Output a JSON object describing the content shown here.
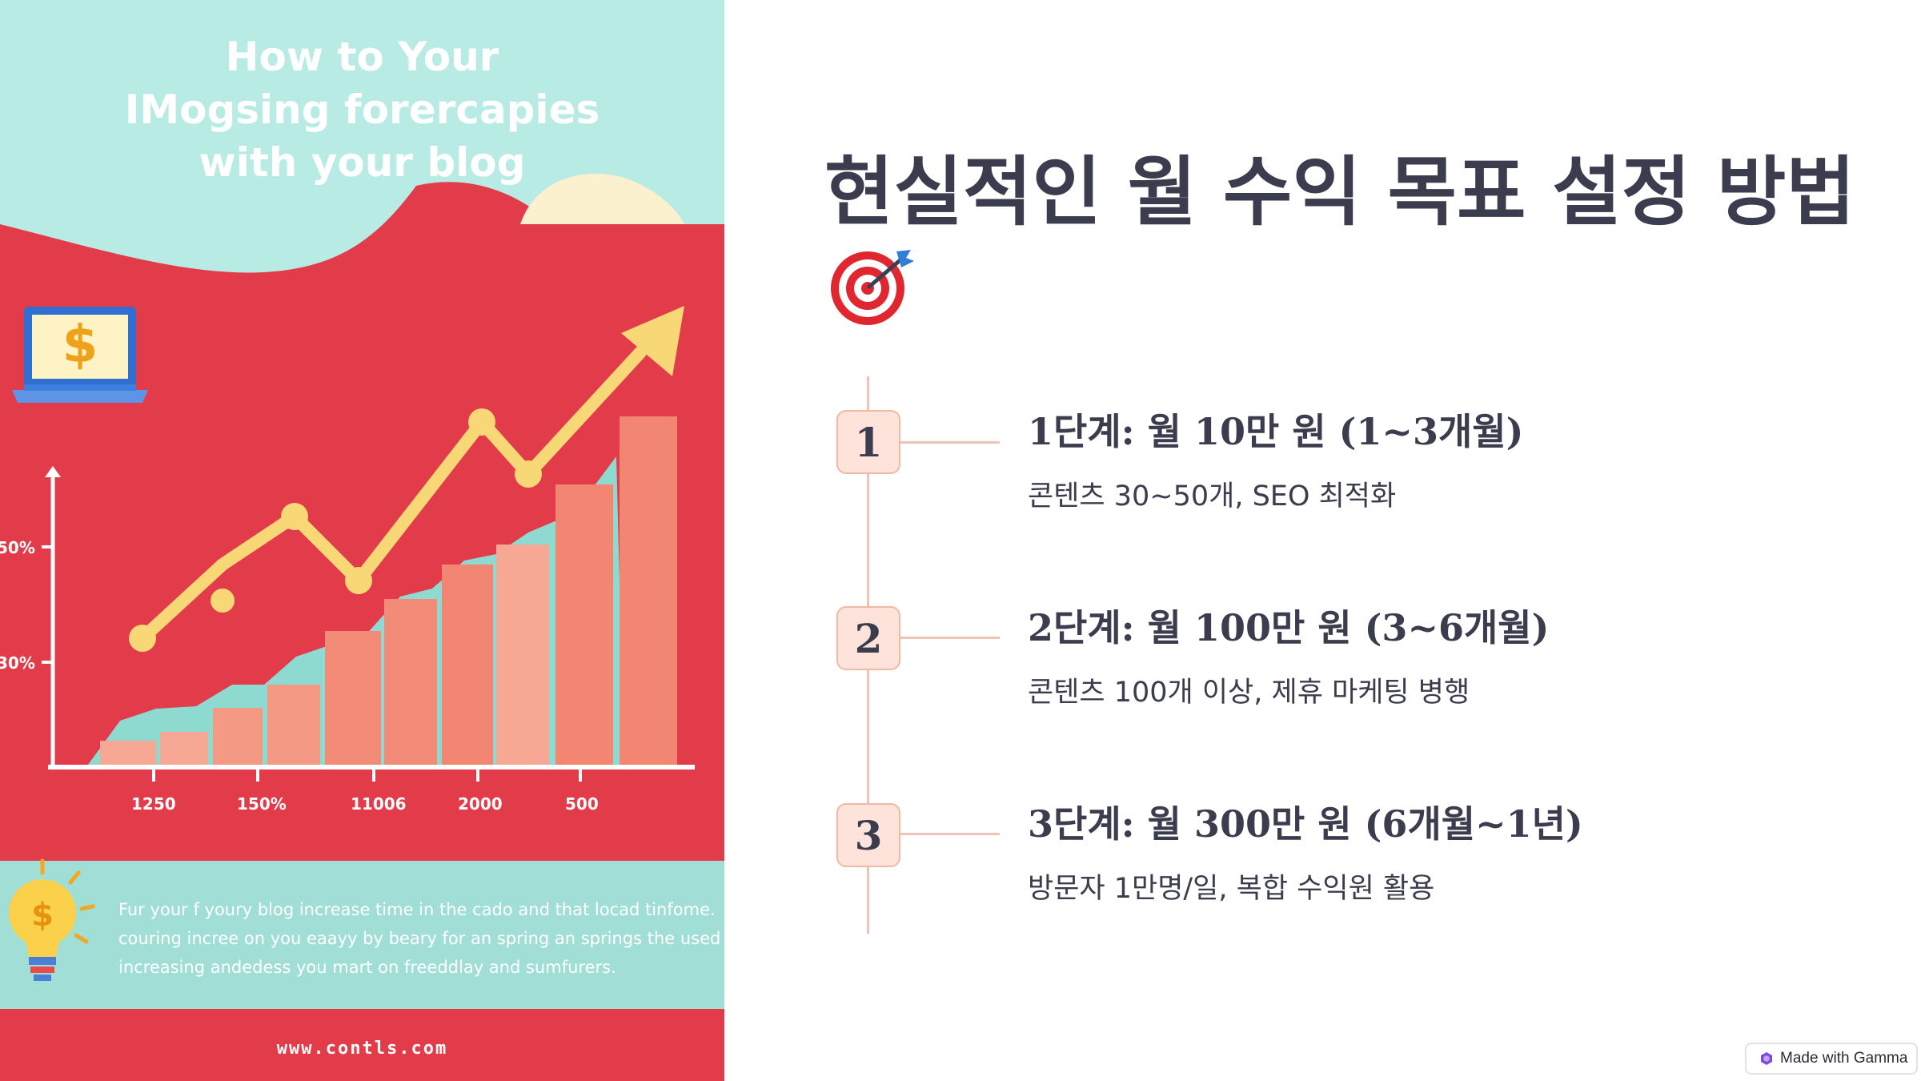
{
  "infographic": {
    "title_lines": [
      "How to Your",
      "IMogsing forercapies",
      "with your blog"
    ],
    "y_axis_labels": [
      "50%",
      "30%"
    ],
    "x_axis_labels": [
      "1250",
      "150%",
      "11006",
      "2000",
      "500"
    ],
    "body_lines": [
      "Fur your f youry blog increase  time in the cado and that locad tinfome.",
      "couring incree on you eaayy by beary for an spring an springs the used",
      "increasing andedess you mart on freeddlay and sumfurers."
    ],
    "url": "www.contls.com",
    "dollar_sign": "$",
    "icons": [
      "laptop-icon",
      "lightbulb-icon"
    ],
    "colors": {
      "background": "#e23b4a",
      "mint": "#b9ebe5",
      "bars": "#f28672",
      "arrow": "#f8d776"
    }
  },
  "slide": {
    "title": "현실적인 월 수익 목표 설정 방법",
    "title_icon": "target-icon",
    "steps": [
      {
        "number": "1",
        "title": "1단계: 월 10만 원 (1~3개월)",
        "desc": "콘텐츠 30~50개, SEO 최적화"
      },
      {
        "number": "2",
        "title": "2단계: 월 100만 원 (3~6개월)",
        "desc": "콘텐츠 100개 이상, 제휴 마케팅 병행"
      },
      {
        "number": "3",
        "title": "3단계: 월 300만 원 (6개월~1년)",
        "desc": "방문자 1만명/일, 복합 수익원 활용"
      }
    ],
    "colors": {
      "text": "#3b3c4d",
      "step_fill": "#fde3d9",
      "step_border": "#f0b9a4",
      "line": "#ecc5b8"
    }
  },
  "badge": {
    "label": "Made with Gamma"
  }
}
